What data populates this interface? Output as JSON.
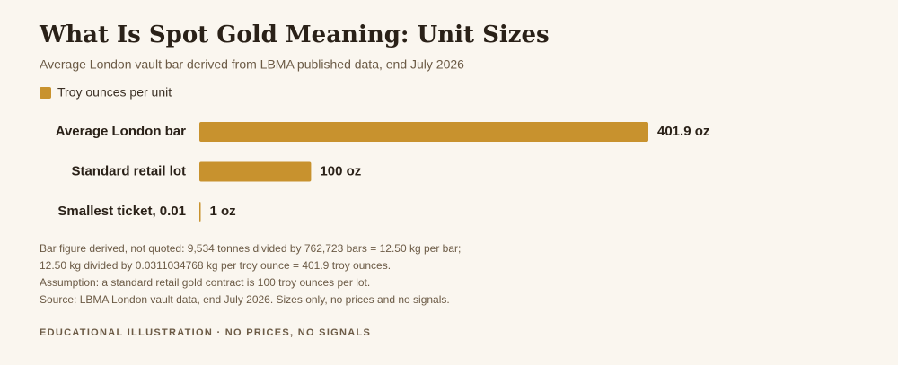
{
  "chart_data": {
    "type": "bar",
    "orientation": "horizontal",
    "title": "What Is Spot Gold Meaning: Unit Sizes",
    "subtitle": "Average London vault bar derived from LBMA published data, end July 2026",
    "categories": [
      "Average London bar",
      "Standard retail lot",
      "Smallest ticket, 0.01"
    ],
    "series": [
      {
        "name": "Troy ounces per unit",
        "color": "#c8922e",
        "values": [
          401.9,
          100,
          1
        ],
        "value_labels": [
          "401.9 oz",
          "100 oz",
          "1 oz"
        ]
      }
    ],
    "notes": [
      "Bar figure derived, not quoted: 9,534 tonnes divided by 762,723 bars = 12.50 kg per bar;",
      "12.50 kg divided by 0.0311034768 kg per troy ounce = 401.9 troy ounces.",
      "Assumption: a standard retail gold contract is 100 troy ounces per lot.",
      "Source: LBMA London vault data, end July 2026. Sizes only, no prices and no signals."
    ],
    "footer": "EDUCATIONAL ILLUSTRATION · NO PRICES, NO SIGNALS"
  }
}
